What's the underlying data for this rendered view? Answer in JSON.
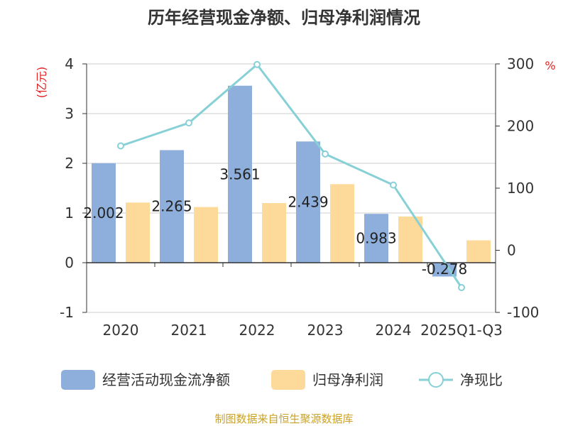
{
  "chart_data": {
    "type": "bar",
    "title": "历年经营现金净额、归母净利润情况",
    "categories": [
      "2020",
      "2021",
      "2022",
      "2023",
      "2024",
      "2025Q1-Q3"
    ],
    "series": [
      {
        "name": "经营活动现金流净额",
        "type": "bar",
        "axis": "left",
        "color": "#8eaedb",
        "values": [
          2.002,
          2.265,
          3.561,
          2.439,
          0.983,
          -0.278
        ],
        "labels": [
          "2.002",
          "2.265",
          "3.561",
          "2.439",
          "0.983",
          "-0.278"
        ]
      },
      {
        "name": "归母净利润",
        "type": "bar",
        "axis": "left",
        "color": "#fdd99a",
        "values": [
          1.21,
          1.12,
          1.2,
          1.58,
          0.93,
          0.45
        ]
      },
      {
        "name": "净现比",
        "type": "line",
        "axis": "right",
        "color": "#86d0d6",
        "values": [
          168,
          205,
          299,
          155,
          105,
          -60
        ]
      }
    ],
    "y_left": {
      "unit": "(亿元)",
      "min": -1,
      "max": 4,
      "ticks": [
        "-1",
        "0",
        "1",
        "2",
        "3",
        "4"
      ]
    },
    "y_right": {
      "unit": "%",
      "min": -100,
      "max": 300,
      "ticks": [
        "-100",
        "0",
        "100",
        "200",
        "300"
      ]
    },
    "grid": true,
    "legend_position": "bottom"
  },
  "source": "制图数据来自恒生聚源数据库"
}
